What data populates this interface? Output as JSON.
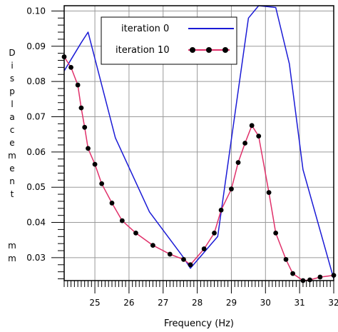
{
  "chart_data": {
    "type": "line",
    "xlabel": "Frequency (Hz)",
    "ylabel": "Displacement   mm",
    "xlim": [
      24.1,
      32.0
    ],
    "ylim": [
      0.0235,
      0.1015
    ],
    "xticks": [
      25,
      26,
      27,
      28,
      29,
      30,
      31,
      32
    ],
    "yticks": [
      0.03,
      0.04,
      0.05,
      0.06,
      0.07,
      0.08,
      0.09,
      0.1
    ],
    "ytick_labels": [
      "0.03",
      "0.04",
      "0.05",
      "0.06",
      "0.07",
      "0.08",
      "0.09",
      "0.10"
    ],
    "grid": true,
    "legend_position": "top-center",
    "series": [
      {
        "name": "iteration 0",
        "color": "#1a1ad6",
        "marker": "none",
        "x": [
          24.1,
          24.6,
          24.8,
          25.6,
          26.6,
          27.6,
          27.8,
          28.6,
          29.5,
          29.8,
          30.3,
          30.7,
          31.1,
          32.0
        ],
        "y": [
          0.083,
          0.091,
          0.094,
          0.064,
          0.043,
          0.03,
          0.027,
          0.036,
          0.098,
          0.1015,
          0.101,
          0.085,
          0.055,
          0.024
        ]
      },
      {
        "name": "iteration 10",
        "color": "#e0306a",
        "marker": "circle",
        "marker_color": "#000000",
        "x": [
          24.1,
          24.3,
          24.5,
          24.6,
          24.7,
          24.8,
          25.0,
          25.2,
          25.5,
          25.8,
          26.2,
          26.7,
          27.2,
          27.6,
          27.8,
          28.2,
          28.5,
          28.7,
          29.0,
          29.2,
          29.4,
          29.6,
          29.8,
          30.1,
          30.3,
          30.6,
          30.8,
          31.1,
          31.3,
          31.6,
          32.0
        ],
        "y": [
          0.087,
          0.084,
          0.079,
          0.0725,
          0.067,
          0.061,
          0.0565,
          0.051,
          0.0455,
          0.0405,
          0.037,
          0.0335,
          0.031,
          0.0295,
          0.028,
          0.0325,
          0.037,
          0.0435,
          0.0495,
          0.057,
          0.0625,
          0.0675,
          0.0645,
          0.0485,
          0.037,
          0.0295,
          0.0255,
          0.0235,
          0.0237,
          0.0245,
          0.025
        ]
      }
    ]
  }
}
